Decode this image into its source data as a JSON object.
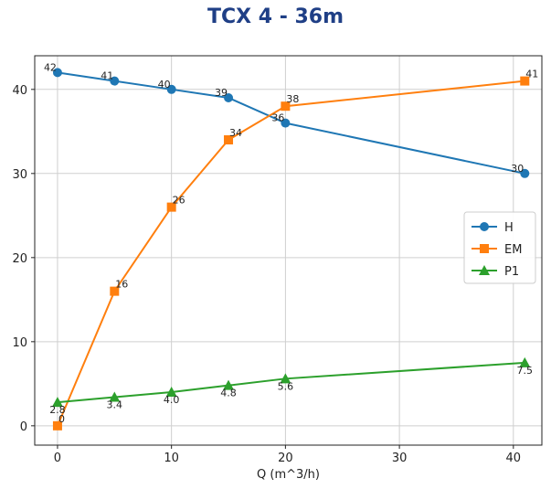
{
  "chart_data": {
    "type": "line",
    "title": "TCX 4 - 36m",
    "xlabel": "Q (m^3/h)",
    "ylabel": "",
    "xlim": [
      -2,
      42.5
    ],
    "ylim": [
      -2.3,
      44
    ],
    "xticks": [
      0,
      10,
      20,
      30,
      40
    ],
    "yticks": [
      0,
      10,
      20,
      30,
      40
    ],
    "grid": true,
    "legend_position": "center-right",
    "series": [
      {
        "name": "H",
        "color": "#1f77b4",
        "marker": "circle",
        "x": [
          0,
          5,
          10,
          15,
          20,
          41
        ],
        "y": [
          42,
          41,
          40,
          39,
          36,
          30
        ],
        "labels": [
          "42",
          "41",
          "40",
          "39",
          "36",
          "30"
        ]
      },
      {
        "name": "EM",
        "color": "#ff7f0e",
        "marker": "square",
        "x": [
          0,
          5,
          10,
          15,
          20,
          41
        ],
        "y": [
          0,
          16,
          26,
          34,
          38,
          41
        ],
        "labels": [
          "0",
          "16",
          "26",
          "34",
          "38",
          "41"
        ]
      },
      {
        "name": "P1",
        "color": "#2ca02c",
        "marker": "triangle",
        "x": [
          0,
          5,
          10,
          15,
          20,
          41
        ],
        "y": [
          2.8,
          3.4,
          4.0,
          4.8,
          5.6,
          7.5
        ],
        "labels": [
          "2.8",
          "3.4",
          "4.0",
          "4.8",
          "5.6",
          "7.5"
        ]
      }
    ]
  }
}
